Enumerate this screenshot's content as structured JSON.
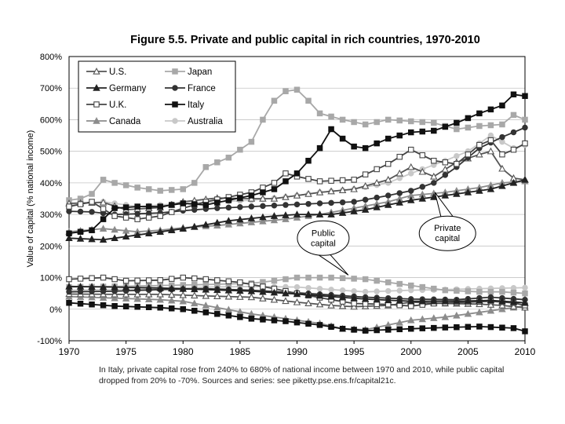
{
  "chart_data": {
    "type": "line",
    "title": "Figure 5.5. Private and public capital in rich countries, 1970-2010",
    "xlabel": "",
    "ylabel": "Value of capital (% national income)",
    "xlim": [
      1970,
      2010
    ],
    "ylim": [
      -100,
      800
    ],
    "x_ticks": [
      "1970",
      "1975",
      "1980",
      "1985",
      "1990",
      "1995",
      "2000",
      "2005",
      "2010"
    ],
    "y_ticks": [
      "800%",
      "700%",
      "600%",
      "500%",
      "400%",
      "300%",
      "200%",
      "100%",
      "0%",
      "-100%"
    ],
    "grid": "horizontal",
    "legend_position": "top-left",
    "series": [
      {
        "name": "U.S.",
        "marker": "triangle-open",
        "color": "#555555",
        "private": [
          [
            1970,
            335
          ],
          [
            1973,
            338
          ],
          [
            1975,
            315
          ],
          [
            1978,
            322
          ],
          [
            1980,
            340
          ],
          [
            1983,
            352
          ],
          [
            1986,
            350
          ],
          [
            1988,
            350
          ],
          [
            1990,
            360
          ],
          [
            1992,
            370
          ],
          [
            1995,
            380
          ],
          [
            1998,
            410
          ],
          [
            2000,
            450
          ],
          [
            2002,
            420
          ],
          [
            2004,
            465
          ],
          [
            2006,
            490
          ],
          [
            2007,
            500
          ],
          [
            2008,
            445
          ],
          [
            2009,
            415
          ],
          [
            2010,
            410
          ]
        ],
        "public": [
          [
            1970,
            48
          ],
          [
            1974,
            47
          ],
          [
            1978,
            47
          ],
          [
            1982,
            42
          ],
          [
            1986,
            38
          ],
          [
            1990,
            22
          ],
          [
            1993,
            12
          ],
          [
            1995,
            8
          ],
          [
            1998,
            12
          ],
          [
            2000,
            22
          ],
          [
            2003,
            18
          ],
          [
            2006,
            16
          ],
          [
            2008,
            12
          ],
          [
            2010,
            5
          ]
        ]
      },
      {
        "name": "Japan",
        "marker": "square-filled",
        "color": "#a8a8a8",
        "private": [
          [
            1970,
            345
          ],
          [
            1971,
            350
          ],
          [
            1972,
            365
          ],
          [
            1973,
            410
          ],
          [
            1974,
            400
          ],
          [
            1976,
            385
          ],
          [
            1978,
            375
          ],
          [
            1980,
            380
          ],
          [
            1981,
            400
          ],
          [
            1982,
            450
          ],
          [
            1984,
            480
          ],
          [
            1986,
            530
          ],
          [
            1987,
            600
          ],
          [
            1988,
            660
          ],
          [
            1989,
            690
          ],
          [
            1990,
            695
          ],
          [
            1991,
            660
          ],
          [
            1992,
            620
          ],
          [
            1994,
            600
          ],
          [
            1996,
            585
          ],
          [
            1998,
            600
          ],
          [
            2000,
            595
          ],
          [
            2002,
            590
          ],
          [
            2004,
            570
          ],
          [
            2006,
            580
          ],
          [
            2008,
            585
          ],
          [
            2009,
            615
          ],
          [
            2010,
            600
          ]
        ],
        "public": [
          [
            1970,
            70
          ],
          [
            1974,
            72
          ],
          [
            1978,
            75
          ],
          [
            1982,
            78
          ],
          [
            1986,
            82
          ],
          [
            1988,
            90
          ],
          [
            1990,
            100
          ],
          [
            1993,
            100
          ],
          [
            1996,
            95
          ],
          [
            1998,
            85
          ],
          [
            2000,
            75
          ],
          [
            2003,
            60
          ],
          [
            2006,
            55
          ],
          [
            2008,
            55
          ],
          [
            2010,
            50
          ]
        ]
      },
      {
        "name": "Germany",
        "marker": "triangle-filled",
        "color": "#222222",
        "private": [
          [
            1970,
            225
          ],
          [
            1973,
            220
          ],
          [
            1976,
            235
          ],
          [
            1980,
            255
          ],
          [
            1984,
            280
          ],
          [
            1988,
            295
          ],
          [
            1990,
            300
          ],
          [
            1993,
            300
          ],
          [
            1996,
            315
          ],
          [
            2000,
            345
          ],
          [
            2004,
            365
          ],
          [
            2007,
            380
          ],
          [
            2008,
            390
          ],
          [
            2010,
            410
          ]
        ],
        "public": [
          [
            1970,
            72
          ],
          [
            1974,
            70
          ],
          [
            1978,
            67
          ],
          [
            1982,
            62
          ],
          [
            1986,
            57
          ],
          [
            1990,
            48
          ],
          [
            1993,
            40
          ],
          [
            1996,
            32
          ],
          [
            2000,
            25
          ],
          [
            2004,
            25
          ],
          [
            2007,
            28
          ],
          [
            2010,
            20
          ]
        ]
      },
      {
        "name": "France",
        "marker": "circle-filled",
        "color": "#333333",
        "private": [
          [
            1970,
            310
          ],
          [
            1972,
            308
          ],
          [
            1974,
            300
          ],
          [
            1976,
            302
          ],
          [
            1978,
            305
          ],
          [
            1980,
            312
          ],
          [
            1983,
            320
          ],
          [
            1986,
            325
          ],
          [
            1989,
            330
          ],
          [
            1992,
            335
          ],
          [
            1995,
            340
          ],
          [
            1998,
            360
          ],
          [
            2000,
            375
          ],
          [
            2002,
            400
          ],
          [
            2004,
            450
          ],
          [
            2006,
            510
          ],
          [
            2008,
            545
          ],
          [
            2010,
            575
          ]
        ],
        "public": [
          [
            1970,
            55
          ],
          [
            1974,
            57
          ],
          [
            1978,
            62
          ],
          [
            1982,
            65
          ],
          [
            1986,
            60
          ],
          [
            1990,
            52
          ],
          [
            1993,
            45
          ],
          [
            1996,
            38
          ],
          [
            2000,
            32
          ],
          [
            2004,
            30
          ],
          [
            2007,
            38
          ],
          [
            2010,
            30
          ]
        ]
      },
      {
        "name": "U.K.",
        "marker": "square-open",
        "color": "#444444",
        "private": [
          [
            1970,
            325
          ],
          [
            1972,
            340
          ],
          [
            1974,
            295
          ],
          [
            1976,
            285
          ],
          [
            1978,
            295
          ],
          [
            1980,
            320
          ],
          [
            1982,
            340
          ],
          [
            1984,
            355
          ],
          [
            1986,
            370
          ],
          [
            1988,
            400
          ],
          [
            1989,
            430
          ],
          [
            1990,
            420
          ],
          [
            1992,
            405
          ],
          [
            1995,
            410
          ],
          [
            1998,
            460
          ],
          [
            2000,
            505
          ],
          [
            2002,
            470
          ],
          [
            2004,
            460
          ],
          [
            2006,
            520
          ],
          [
            2007,
            535
          ],
          [
            2008,
            490
          ],
          [
            2009,
            505
          ],
          [
            2010,
            525
          ]
        ],
        "public": [
          [
            1970,
            95
          ],
          [
            1973,
            100
          ],
          [
            1975,
            90
          ],
          [
            1978,
            92
          ],
          [
            1980,
            100
          ],
          [
            1982,
            95
          ],
          [
            1985,
            85
          ],
          [
            1988,
            65
          ],
          [
            1990,
            50
          ],
          [
            1993,
            30
          ],
          [
            1995,
            18
          ],
          [
            1998,
            15
          ],
          [
            2000,
            10
          ],
          [
            2002,
            18
          ],
          [
            2005,
            22
          ],
          [
            2007,
            25
          ],
          [
            2009,
            20
          ],
          [
            2010,
            12
          ]
        ]
      },
      {
        "name": "Italy",
        "marker": "square-filled",
        "color": "#111111",
        "private": [
          [
            1970,
            240
          ],
          [
            1972,
            250
          ],
          [
            1974,
            320
          ],
          [
            1976,
            325
          ],
          [
            1978,
            325
          ],
          [
            1980,
            335
          ],
          [
            1982,
            330
          ],
          [
            1984,
            345
          ],
          [
            1986,
            360
          ],
          [
            1988,
            380
          ],
          [
            1990,
            430
          ],
          [
            1992,
            510
          ],
          [
            1993,
            570
          ],
          [
            1994,
            540
          ],
          [
            1995,
            515
          ],
          [
            1996,
            510
          ],
          [
            1998,
            540
          ],
          [
            2000,
            560
          ],
          [
            2002,
            565
          ],
          [
            2004,
            590
          ],
          [
            2006,
            620
          ],
          [
            2008,
            645
          ],
          [
            2009,
            680
          ],
          [
            2010,
            675
          ]
        ],
        "public": [
          [
            1970,
            20
          ],
          [
            1974,
            10
          ],
          [
            1978,
            5
          ],
          [
            1980,
            0
          ],
          [
            1983,
            -15
          ],
          [
            1986,
            -30
          ],
          [
            1989,
            -38
          ],
          [
            1992,
            -50
          ],
          [
            1994,
            -62
          ],
          [
            1996,
            -68
          ],
          [
            1998,
            -65
          ],
          [
            2000,
            -62
          ],
          [
            2003,
            -58
          ],
          [
            2006,
            -55
          ],
          [
            2009,
            -60
          ],
          [
            2010,
            -70
          ]
        ]
      },
      {
        "name": "Canada",
        "marker": "triangle-filled",
        "color": "#8c8c8c",
        "private": [
          [
            1970,
            245
          ],
          [
            1973,
            255
          ],
          [
            1976,
            245
          ],
          [
            1978,
            250
          ],
          [
            1980,
            258
          ],
          [
            1983,
            265
          ],
          [
            1986,
            275
          ],
          [
            1989,
            285
          ],
          [
            1992,
            300
          ],
          [
            1995,
            320
          ],
          [
            1998,
            340
          ],
          [
            2000,
            360
          ],
          [
            2003,
            370
          ],
          [
            2006,
            385
          ],
          [
            2008,
            400
          ],
          [
            2010,
            405
          ]
        ],
        "public": [
          [
            1970,
            40
          ],
          [
            1974,
            35
          ],
          [
            1978,
            30
          ],
          [
            1980,
            25
          ],
          [
            1983,
            5
          ],
          [
            1986,
            -15
          ],
          [
            1989,
            -30
          ],
          [
            1992,
            -45
          ],
          [
            1994,
            -62
          ],
          [
            1996,
            -65
          ],
          [
            1998,
            -50
          ],
          [
            2000,
            -35
          ],
          [
            2003,
            -25
          ],
          [
            2006,
            -10
          ],
          [
            2008,
            0
          ],
          [
            2010,
            10
          ]
        ]
      },
      {
        "name": "Australia",
        "marker": "circle-filled",
        "color": "#c8c8c8",
        "private": [
          [
            1970,
            330
          ],
          [
            1973,
            340
          ],
          [
            1976,
            325
          ],
          [
            1978,
            330
          ],
          [
            1980,
            335
          ],
          [
            1983,
            340
          ],
          [
            1986,
            345
          ],
          [
            1989,
            355
          ],
          [
            1992,
            370
          ],
          [
            1995,
            380
          ],
          [
            1998,
            400
          ],
          [
            2000,
            430
          ],
          [
            2003,
            470
          ],
          [
            2005,
            500
          ],
          [
            2007,
            550
          ],
          [
            2008,
            530
          ],
          [
            2009,
            510
          ],
          [
            2010,
            520
          ]
        ],
        "public": [
          [
            1970,
            60
          ],
          [
            1974,
            62
          ],
          [
            1978,
            65
          ],
          [
            1982,
            70
          ],
          [
            1986,
            72
          ],
          [
            1990,
            70
          ],
          [
            1993,
            62
          ],
          [
            1996,
            55
          ],
          [
            2000,
            60
          ],
          [
            2003,
            62
          ],
          [
            2006,
            65
          ],
          [
            2010,
            68
          ]
        ]
      }
    ],
    "annotations": [
      {
        "id": "private",
        "text": "Private capital",
        "lines": [
          "Private",
          "capital"
        ]
      },
      {
        "id": "public",
        "text": "Public capital",
        "lines": [
          "Public",
          "capital"
        ]
      }
    ]
  },
  "note": {
    "line1": "In Italy, private capital rose from 240% to 680% of national income between 1970 and 2010, while public capital",
    "line2": "dropped from 20% to -70%. Sources and series:  see piketty.pse.ens.fr/capital21c."
  }
}
